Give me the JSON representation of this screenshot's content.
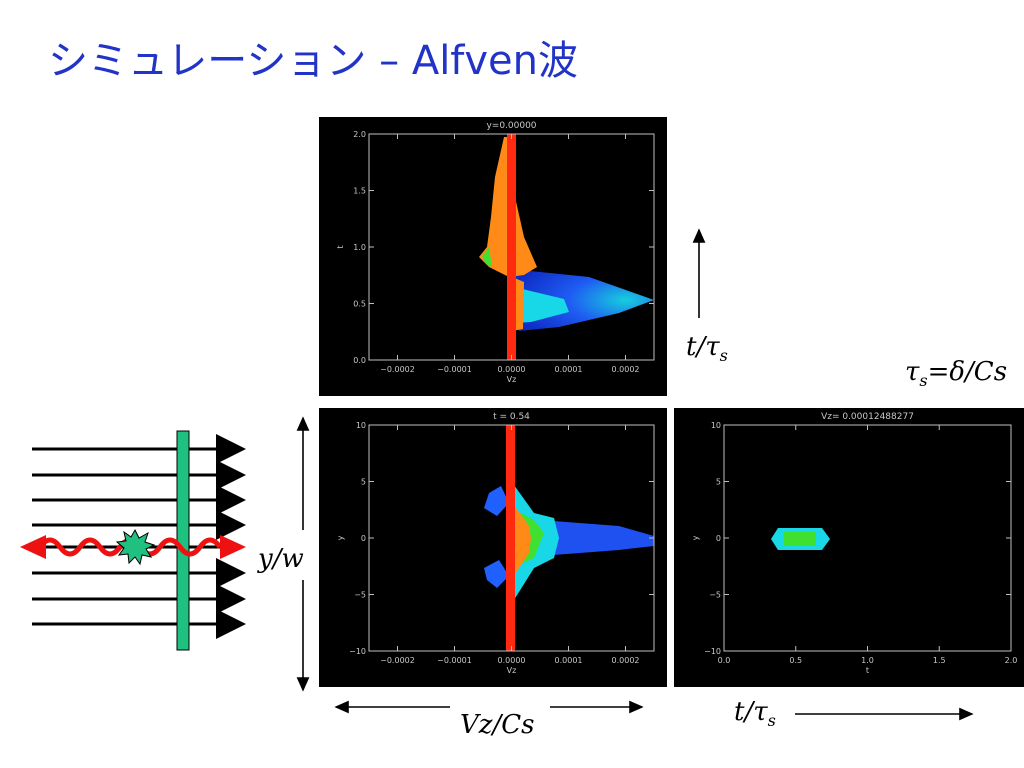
{
  "slide": {
    "title": "シミュレーション – Alfven波"
  },
  "annotations": {
    "t_axis_top": "t/τ",
    "t_axis_top_sub": "s",
    "tau_def_main": "τ",
    "tau_def_sub": "s",
    "tau_def_rest": "=δ/Cs",
    "y_axis": "y/w",
    "vz_axis": "Vz/Cs",
    "t_axis_bottom": "t/τ",
    "t_axis_bottom_sub": "s"
  },
  "colors": {
    "title": "#2233c8",
    "plasma_red": "#ff2a10",
    "plasma_orange": "#ff8a18",
    "plasma_blue": "#2060ff",
    "plasma_cyan": "#18d8e8",
    "plasma_green": "#40e030",
    "wave_red": "#ee1111",
    "slab_green": "#20c080"
  },
  "chart_data": [
    {
      "type": "heatmap",
      "title": "y=0.00000",
      "xlabel": "Vz",
      "ylabel": "t",
      "xlim": [
        -0.00025,
        0.00025
      ],
      "ylim": [
        0,
        2.0
      ],
      "x_ticks": [
        "−0.0002",
        "−0.0001",
        "0.0000",
        "0.0001",
        "0.0002"
      ],
      "y_ticks": [
        "0.0",
        "0.5",
        "1.0",
        "1.5",
        "2.0"
      ]
    },
    {
      "type": "heatmap",
      "title": "t = 0.54",
      "xlabel": "Vz",
      "ylabel": "y",
      "xlim": [
        -0.00025,
        0.00025
      ],
      "ylim": [
        -10,
        10
      ],
      "x_ticks": [
        "−0.0002",
        "−0.0001",
        "0.0000",
        "0.0001",
        "0.0002"
      ],
      "y_ticks": [
        "−10",
        "−5",
        "0",
        "5",
        "10"
      ]
    },
    {
      "type": "heatmap",
      "title": "Vz= 0.00012488277",
      "xlabel": "t",
      "ylabel": "y",
      "xlim": [
        0,
        2.0
      ],
      "ylim": [
        -10,
        10
      ],
      "x_ticks": [
        "0.0",
        "0.5",
        "1.0",
        "1.5",
        "2.0"
      ],
      "y_ticks": [
        "−10",
        "−5",
        "0",
        "5",
        "10"
      ]
    }
  ]
}
